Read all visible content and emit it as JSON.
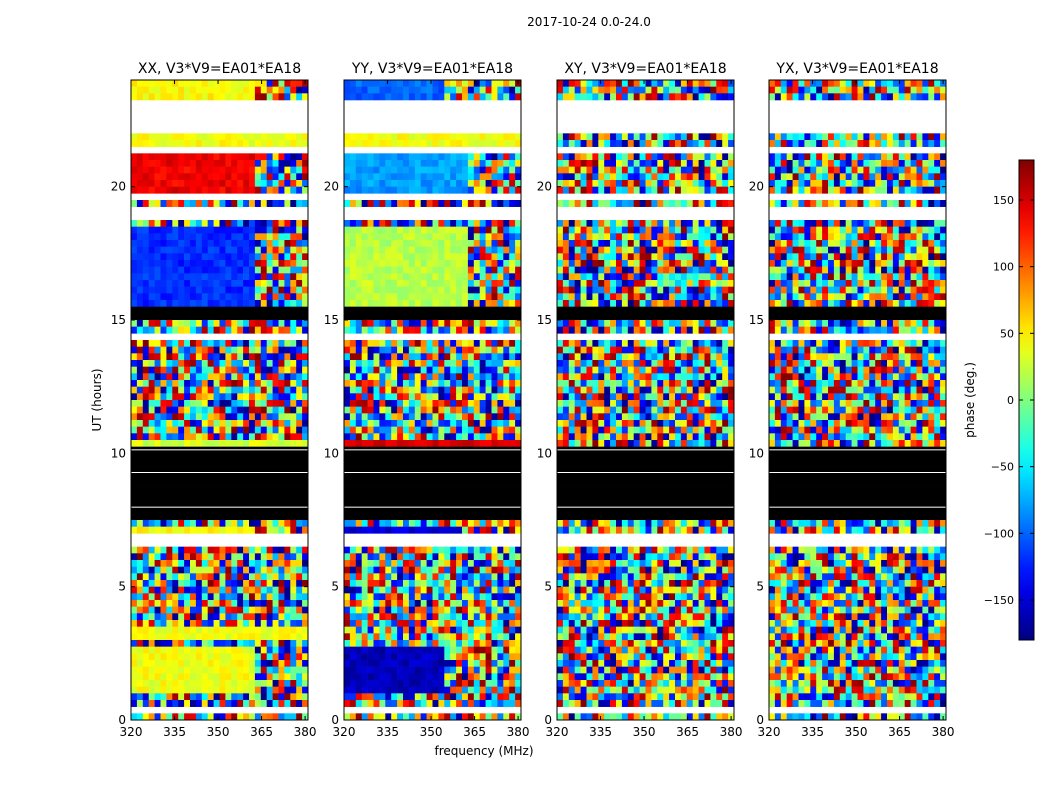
{
  "figure": {
    "suptitle": "2017-10-24 0.0-24.0",
    "xlabel": "frequency (MHz)",
    "ylabel": "UT (hours)",
    "colorbar_label": "phase (deg.)",
    "colorbar_colormap": "jet"
  },
  "chart_data": {
    "type": "heatmap",
    "x_range": [
      320,
      381
    ],
    "y_range": [
      0,
      24
    ],
    "x_ticks": [
      320,
      335,
      350,
      365,
      380
    ],
    "y_ticks": [
      0,
      5,
      10,
      15,
      20
    ],
    "color_range": [
      -180,
      180
    ],
    "color_ticks": [
      150,
      100,
      50,
      0,
      -50,
      -100,
      -150
    ],
    "color_tick_labels": [
      "150",
      "100",
      "50",
      "0",
      "−50",
      "−100",
      "−150"
    ],
    "white_gaps_hours": [
      [
        0.35,
        0.55
      ],
      [
        2.95,
        3.05
      ],
      [
        6.55,
        7.1
      ],
      [
        14.35,
        14.45
      ],
      [
        18.7,
        19.3
      ],
      [
        19.5,
        19.8
      ],
      [
        21.25,
        21.5
      ],
      [
        22.0,
        23.3
      ],
      [
        23.45,
        23.55
      ]
    ],
    "black_flag_hours": [
      [
        7.5,
        10.3
      ],
      [
        14.9,
        15.4
      ]
    ],
    "panels": [
      {
        "title": "XX, V3*V9=EA01*EA18",
        "segments": [
          {
            "hours": [
              0.9,
              2.7
            ],
            "phase_deg": 40,
            "changes_at_MHz": 363
          },
          {
            "hours": [
              3.05,
              3.5
            ],
            "phase_deg": 40
          },
          {
            "hours": [
              7.1,
              7.3
            ],
            "phase_deg": 45,
            "changes_at_MHz": 363
          },
          {
            "hours": [
              10.3,
              10.5
            ],
            "phase_deg": 30
          },
          {
            "hours": [
              15.5,
              18.6
            ],
            "phase_deg": -120,
            "changes_at_MHz": 363
          },
          {
            "hours": [
              19.8,
              21.2
            ],
            "phase_deg": 140,
            "changes_at_MHz": 363
          },
          {
            "hours": [
              21.5,
              22.0
            ],
            "phase_deg": 40
          },
          {
            "hours": [
              23.3,
              23.9
            ],
            "phase_deg": 45,
            "changes_at_MHz": 363
          }
        ]
      },
      {
        "title": "YY, V3*V9=EA01*EA18",
        "segments": [
          {
            "hours": [
              0.9,
              2.7
            ],
            "phase_deg": -160,
            "changes_at_MHz": 355
          },
          {
            "hours": [
              3.4,
              3.6
            ],
            "phase_deg": -160
          },
          {
            "hours": [
              7.1,
              7.3
            ],
            "phase_deg": -150,
            "changes_at_MHz": 360
          },
          {
            "hours": [
              10.3,
              10.5
            ],
            "phase_deg": 150
          },
          {
            "hours": [
              15.5,
              18.6
            ],
            "phase_deg": 20,
            "changes_at_MHz": 363
          },
          {
            "hours": [
              19.8,
              21.2
            ],
            "phase_deg": -80,
            "changes_at_MHz": 363
          },
          {
            "hours": [
              21.5,
              22.0
            ],
            "phase_deg": 40
          },
          {
            "hours": [
              23.3,
              23.9
            ],
            "phase_deg": -100,
            "changes_at_MHz": 355
          }
        ]
      },
      {
        "title": "XY, V3*V9=EA01*EA18",
        "segments": []
      },
      {
        "title": "YX, V3*V9=EA01*EA18",
        "segments": []
      }
    ]
  }
}
